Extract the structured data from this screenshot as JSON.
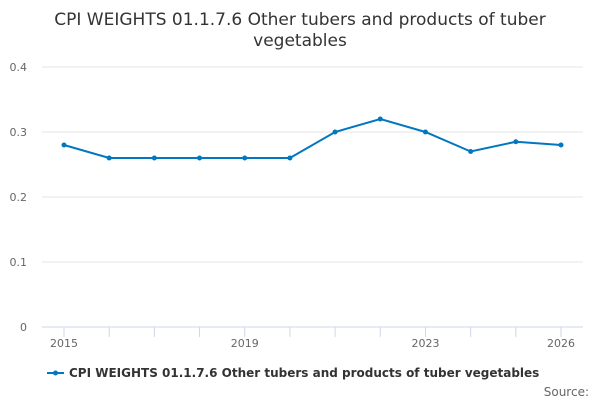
{
  "chart_data": {
    "type": "line",
    "title_lines": [
      "CPI WEIGHTS 01.1.7.6 Other tubers and products of tuber",
      "vegetables"
    ],
    "x": [
      2015,
      2016,
      2017,
      2018,
      2019,
      2020,
      2021,
      2022,
      2023,
      2024,
      2025,
      2026
    ],
    "x_tick_labels": [
      "2015",
      "2019",
      "2023",
      "2026"
    ],
    "y_tick_labels": [
      "0",
      "0.1",
      "0.2",
      "0.3",
      "0.4"
    ],
    "ylim": [
      0,
      0.4
    ],
    "grid": true,
    "series": [
      {
        "name": "CPI WEIGHTS 01.1.7.6 Other tubers and products of tuber vegetables",
        "color": "#0077c0",
        "values": [
          0.28,
          0.26,
          0.26,
          0.26,
          0.26,
          0.26,
          0.3,
          0.32,
          0.3,
          0.27,
          0.285,
          0.28
        ]
      }
    ],
    "legend_position": "bottom",
    "source_label": "Source:"
  }
}
